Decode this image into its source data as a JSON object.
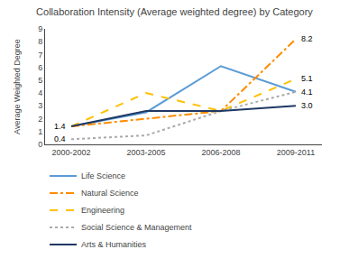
{
  "chart_data": {
    "type": "line",
    "title": "Collaboration Intensity (Average weighted degree) by Category",
    "y_label": "Average Weighted Degree",
    "categories": [
      "2000-2002",
      "2003-2005",
      "2006-2008",
      "2009-2011"
    ],
    "series": [
      {
        "name": "Life Science",
        "color": "#5B9BD5",
        "line_style": "solid",
        "values": [
          1.4,
          2.5,
          6.1,
          4.1
        ]
      },
      {
        "name": "Natural Science",
        "color": "#FF8C00",
        "line_style": "dashdot",
        "values": [
          1.4,
          null,
          2.6,
          8.2
        ]
      },
      {
        "name": "Engineering",
        "color": "#FFC000",
        "line_style": "dash",
        "values": [
          1.4,
          4.0,
          2.6,
          5.1
        ]
      },
      {
        "name": "Social Science & Management",
        "color": "#AAAAAA",
        "line_style": "dot",
        "values": [
          0.4,
          0.7,
          2.6,
          4.1
        ]
      },
      {
        "name": "Arts & Humanities",
        "color": "#1F3864",
        "line_style": "solid",
        "values": [
          1.4,
          2.6,
          2.6,
          3.0
        ]
      }
    ],
    "annotations": [
      {
        "x": "2009-2011",
        "y": 8.2,
        "text": "8.2"
      },
      {
        "x": "2009-2011",
        "y": 5.1,
        "text": "5.1"
      },
      {
        "x": "2009-2011",
        "y": 4.1,
        "text": "4.1"
      },
      {
        "x": "2009-2011",
        "y": 3.0,
        "text": "3.0"
      },
      {
        "x": "2000-2002",
        "y": 1.4,
        "text": "1.4"
      },
      {
        "x": "2000-2002",
        "y": 0.4,
        "text": "0.4"
      }
    ],
    "ylim": [
      0,
      9
    ],
    "yticks": [
      0,
      1,
      2,
      3,
      4,
      5,
      6,
      7,
      8,
      9
    ],
    "grid": false,
    "legend": "bottom"
  }
}
